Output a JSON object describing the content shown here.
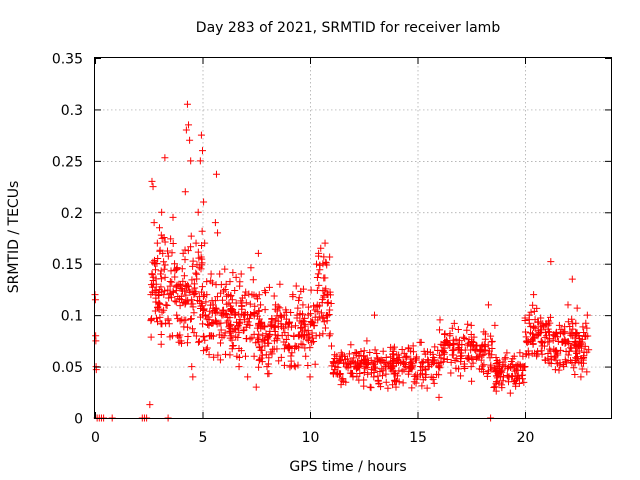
{
  "chart_data": {
    "type": "scatter",
    "title": "Day 283 of 2021, SRMTID for receiver lamb",
    "xlabel": "GPS time / hours",
    "ylabel": "SRMTID / TECUs",
    "xlim": [
      0,
      24
    ],
    "ylim": [
      0,
      0.35
    ],
    "xticks": [
      0,
      5,
      10,
      15,
      20
    ],
    "xtick_labels": [
      "0",
      "5",
      "10",
      "15",
      "20"
    ],
    "yticks": [
      0,
      0.05,
      0.1,
      0.15,
      0.2,
      0.25,
      0.3,
      0.35
    ],
    "ytick_labels": [
      "0",
      "0.05",
      "0.1",
      "0.15",
      "0.2",
      "0.25",
      "0.3",
      "0.35"
    ],
    "grid": true,
    "marker": "plus",
    "color": "#ff0000",
    "series": [
      {
        "name": "SRMTID",
        "points": [
          [
            0.0,
            0.12
          ],
          [
            0.02,
            0.115
          ],
          [
            0.03,
            0.08
          ],
          [
            0.04,
            0.075
          ],
          [
            0.05,
            0.05
          ],
          [
            0.06,
            0.047
          ],
          [
            0.1,
            0.0
          ],
          [
            0.2,
            0.0
          ],
          [
            0.3,
            0.0
          ],
          [
            0.4,
            0.0
          ],
          [
            0.8,
            0.0
          ],
          [
            2.2,
            0.0
          ],
          [
            2.3,
            0.0
          ],
          [
            2.4,
            0.0
          ],
          [
            3.4,
            0.0
          ],
          [
            18.4,
            0.0
          ],
          [
            2.55,
            0.013
          ],
          [
            2.6,
            0.12
          ],
          [
            2.65,
            0.23
          ],
          [
            2.7,
            0.225
          ],
          [
            2.75,
            0.19
          ],
          [
            2.8,
            0.15
          ],
          [
            2.85,
            0.13
          ],
          [
            2.9,
            0.17
          ],
          [
            2.95,
            0.12
          ],
          [
            3.0,
            0.185
          ],
          [
            3.05,
            0.14
          ],
          [
            3.1,
            0.2
          ],
          [
            3.15,
            0.16
          ],
          [
            3.2,
            0.12
          ],
          [
            3.25,
            0.253
          ],
          [
            3.3,
            0.11
          ],
          [
            3.4,
            0.095
          ],
          [
            3.5,
            0.12
          ],
          [
            3.6,
            0.08
          ],
          [
            3.7,
            0.15
          ],
          [
            3.8,
            0.1
          ],
          [
            3.9,
            0.13
          ],
          [
            4.0,
            0.075
          ],
          [
            4.1,
            0.16
          ],
          [
            4.2,
            0.22
          ],
          [
            4.25,
            0.28
          ],
          [
            4.3,
            0.305
          ],
          [
            4.35,
            0.285
          ],
          [
            4.4,
            0.27
          ],
          [
            4.45,
            0.25
          ],
          [
            4.5,
            0.05
          ],
          [
            4.55,
            0.04
          ],
          [
            4.6,
            0.12
          ],
          [
            4.7,
            0.17
          ],
          [
            4.8,
            0.2
          ],
          [
            4.9,
            0.25
          ],
          [
            4.95,
            0.275
          ],
          [
            5.0,
            0.26
          ],
          [
            5.05,
            0.21
          ],
          [
            5.1,
            0.17
          ],
          [
            5.2,
            0.12
          ],
          [
            5.3,
            0.09
          ],
          [
            5.4,
            0.14
          ],
          [
            5.5,
            0.11
          ],
          [
            5.6,
            0.19
          ],
          [
            5.65,
            0.237
          ],
          [
            5.7,
            0.18
          ],
          [
            5.8,
            0.14
          ],
          [
            5.9,
            0.1
          ],
          [
            6.0,
            0.08
          ],
          [
            6.1,
            0.13
          ],
          [
            6.2,
            0.12
          ],
          [
            6.3,
            0.09
          ],
          [
            6.4,
            0.07
          ],
          [
            6.5,
            0.1
          ],
          [
            6.6,
            0.06
          ],
          [
            6.7,
            0.05
          ],
          [
            6.8,
            0.14
          ],
          [
            6.9,
            0.085
          ],
          [
            7.0,
            0.06
          ],
          [
            7.1,
            0.04
          ],
          [
            7.2,
            0.09
          ],
          [
            7.3,
            0.12
          ],
          [
            7.4,
            0.06
          ],
          [
            7.5,
            0.03
          ],
          [
            7.6,
            0.16
          ],
          [
            7.7,
            0.11
          ],
          [
            7.8,
            0.08
          ],
          [
            7.9,
            0.07
          ],
          [
            8.0,
            0.05
          ],
          [
            8.2,
            0.09
          ],
          [
            8.4,
            0.11
          ],
          [
            8.6,
            0.13
          ],
          [
            8.8,
            0.1
          ],
          [
            9.0,
            0.07
          ],
          [
            9.2,
            0.12
          ],
          [
            9.4,
            0.1
          ],
          [
            9.6,
            0.08
          ],
          [
            9.8,
            0.06
          ],
          [
            10.0,
            0.04
          ],
          [
            10.2,
            0.09
          ],
          [
            10.4,
            0.16
          ],
          [
            10.5,
            0.165
          ],
          [
            10.6,
            0.15
          ],
          [
            10.7,
            0.17
          ],
          [
            10.8,
            0.12
          ],
          [
            10.9,
            0.08
          ],
          [
            11.0,
            0.07
          ],
          [
            11.2,
            0.05
          ],
          [
            11.5,
            0.06
          ],
          [
            12.0,
            0.04
          ],
          [
            12.5,
            0.06
          ],
          [
            12.8,
            0.03
          ],
          [
            13.0,
            0.1
          ],
          [
            13.5,
            0.05
          ],
          [
            14.0,
            0.03
          ],
          [
            14.5,
            0.06
          ],
          [
            15.0,
            0.04
          ],
          [
            15.5,
            0.05
          ],
          [
            16.0,
            0.02
          ],
          [
            16.5,
            0.08
          ],
          [
            17.0,
            0.06
          ],
          [
            17.5,
            0.09
          ],
          [
            18.0,
            0.07
          ],
          [
            18.3,
            0.11
          ],
          [
            18.6,
            0.09
          ],
          [
            19.0,
            0.04
          ],
          [
            19.5,
            0.06
          ],
          [
            20.0,
            0.05
          ],
          [
            20.2,
            0.1
          ],
          [
            20.4,
            0.12
          ],
          [
            20.6,
            0.08
          ],
          [
            20.8,
            0.07
          ],
          [
            21.0,
            0.08
          ],
          [
            21.2,
            0.152
          ],
          [
            21.4,
            0.06
          ],
          [
            21.6,
            0.09
          ],
          [
            21.8,
            0.05
          ],
          [
            22.0,
            0.11
          ],
          [
            22.2,
            0.135
          ],
          [
            22.4,
            0.07
          ],
          [
            22.6,
            0.04
          ],
          [
            22.8,
            0.08
          ],
          [
            22.9,
            0.1
          ]
        ]
      }
    ],
    "dense_cloud": {
      "description": "background sample density bands",
      "bands": [
        {
          "x_range": [
            2.6,
            5.0
          ],
          "y_range": [
            0.05,
            0.2
          ],
          "count": 180
        },
        {
          "x_range": [
            5.0,
            7.5
          ],
          "y_range": [
            0.04,
            0.16
          ],
          "count": 170
        },
        {
          "x_range": [
            7.5,
            10.3
          ],
          "y_range": [
            0.03,
            0.14
          ],
          "count": 190
        },
        {
          "x_range": [
            10.3,
            11.0
          ],
          "y_range": [
            0.06,
            0.17
          ],
          "count": 50
        },
        {
          "x_range": [
            11.0,
            16.0
          ],
          "y_range": [
            0.02,
            0.08
          ],
          "count": 260
        },
        {
          "x_range": [
            16.0,
            18.5
          ],
          "y_range": [
            0.03,
            0.1
          ],
          "count": 140
        },
        {
          "x_range": [
            18.5,
            20.0
          ],
          "y_range": [
            0.02,
            0.07
          ],
          "count": 90
        },
        {
          "x_range": [
            20.0,
            21.2
          ],
          "y_range": [
            0.04,
            0.12
          ],
          "count": 80
        },
        {
          "x_range": [
            21.2,
            23.0
          ],
          "y_range": [
            0.03,
            0.11
          ],
          "count": 120
        }
      ]
    }
  }
}
